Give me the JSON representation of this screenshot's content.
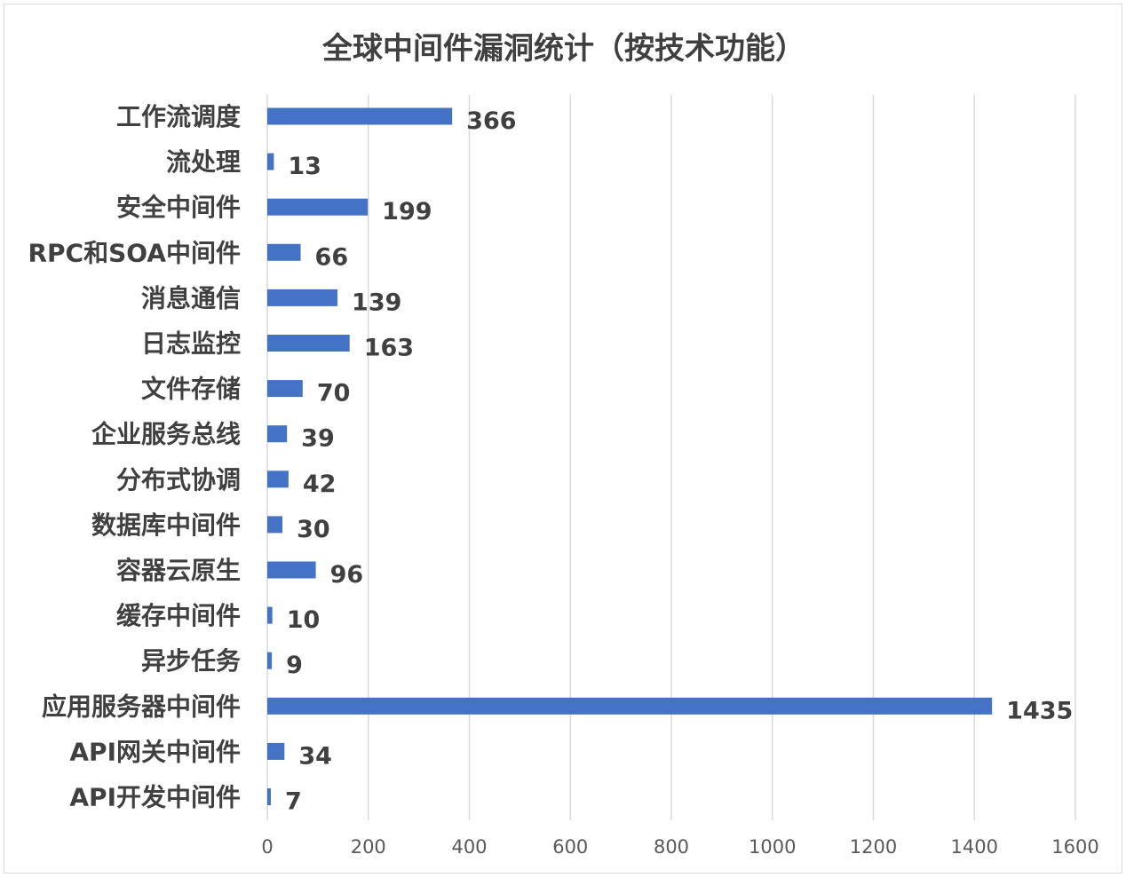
{
  "chart_data": {
    "type": "bar",
    "orientation": "horizontal",
    "title": "全球中间件漏洞统计（按技术功能）",
    "categories": [
      "工作流调度",
      "流处理",
      "安全中间件",
      "RPC和SOA中间件",
      "消息通信",
      "日志监控",
      "文件存储",
      "企业服务总线",
      "分布式协调",
      "数据库中间件",
      "容器云原生",
      "缓存中间件",
      "异步任务",
      "应用服务器中间件",
      "API网关中间件",
      "API开发中间件"
    ],
    "values": [
      366,
      13,
      199,
      66,
      139,
      163,
      70,
      39,
      42,
      30,
      96,
      10,
      9,
      1435,
      34,
      7
    ],
    "xlim": [
      0,
      1600
    ],
    "xticks": [
      0,
      200,
      400,
      600,
      800,
      1000,
      1200,
      1400,
      1600
    ],
    "grid": "vertical",
    "legend": "none",
    "data_labels": true,
    "bar_color": "#4472C4",
    "grid_color": "#d9d9d9",
    "text_color": "#404040"
  }
}
